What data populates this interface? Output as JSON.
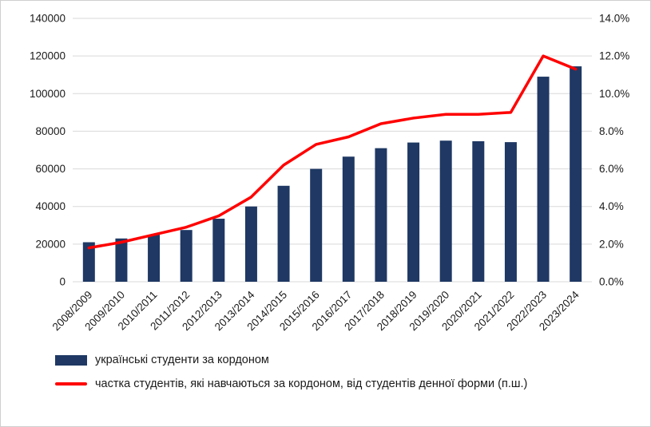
{
  "colors": {
    "bar": "#1f3864",
    "line": "#ff0000",
    "grid": "#d9d9d9",
    "text": "#1a1a1a"
  },
  "chart_data": {
    "type": "bar",
    "subtype": "bar+line combo, dual axis",
    "title": "",
    "xlabel": "",
    "ylabel": "",
    "grid": true,
    "legend_position": "bottom-left",
    "categories": [
      "2008/2009",
      "2009/2010",
      "2010/2011",
      "2011/2012",
      "2012/2013",
      "2013/2014",
      "2014/2015",
      "2015/2016",
      "2016/2017",
      "2017/2018",
      "2018/2019",
      "2019/2020",
      "2020/2021",
      "2021/2022",
      "2022/2023",
      "2023/2024"
    ],
    "series": [
      {
        "name": "українські студенти за кордоном",
        "type": "bar",
        "axis": "left",
        "color": "#1f3864",
        "values": [
          21000,
          23000,
          25000,
          27500,
          33500,
          40000,
          51000,
          60000,
          66500,
          71000,
          74000,
          75000,
          74700,
          74200,
          109000,
          114500
        ]
      },
      {
        "name": "частка студентів, які навчаються за кордоном, від студентів денної форми (п.ш.)",
        "type": "line",
        "axis": "right",
        "color": "#ff0000",
        "values": [
          1.8,
          2.1,
          2.5,
          2.9,
          3.5,
          4.5,
          6.2,
          7.3,
          7.7,
          8.4,
          8.7,
          8.9,
          8.9,
          9.0,
          12.0,
          11.3
        ]
      }
    ],
    "left_axis": {
      "min": 0,
      "max": 140000,
      "step": 20000,
      "tick_labels": [
        "0",
        "20000",
        "40000",
        "60000",
        "80000",
        "100000",
        "120000",
        "140000"
      ]
    },
    "right_axis": {
      "min": 0,
      "max": 14,
      "step": 2,
      "tick_labels": [
        "0.0%",
        "2.0%",
        "4.0%",
        "6.0%",
        "8.0%",
        "10.0%",
        "12.0%",
        "14.0%"
      ]
    }
  }
}
